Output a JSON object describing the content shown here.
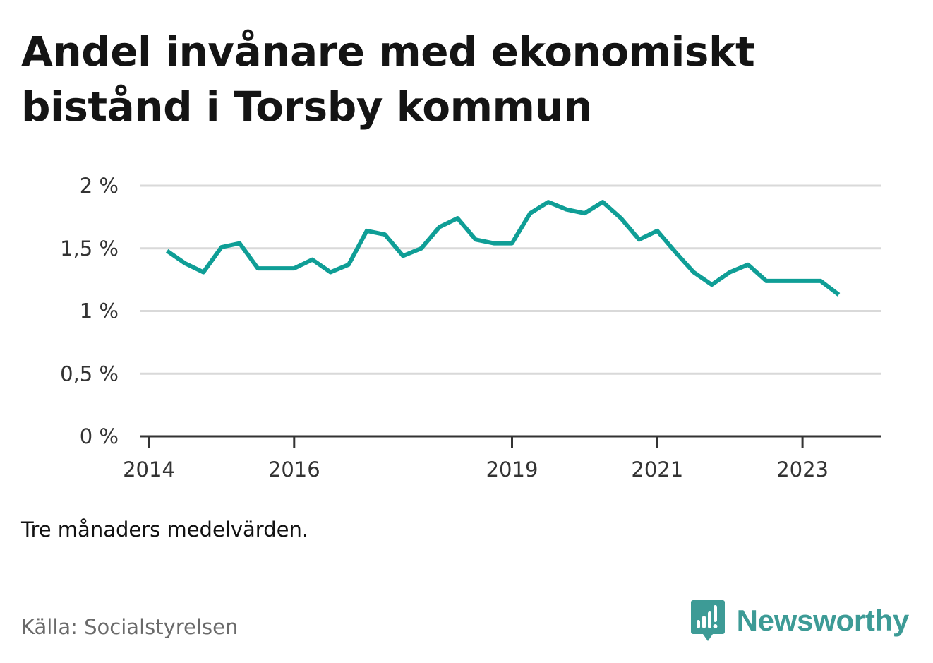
{
  "title": "Andel invånare med ekonomiskt bistånd i Torsby kommun",
  "note": "Tre månaders medelvärden.",
  "source": "Källa: Socialstyrelsen",
  "brand": {
    "name": "Newsworthy",
    "icon": "newsworthy-logo-icon",
    "color": "#3d9b96"
  },
  "colors": {
    "line": "#0f9e96",
    "grid": "#d9d9d9",
    "axis": "#333333"
  },
  "chart_data": {
    "type": "line",
    "title": "Andel invånare med ekonomiskt bistånd i Torsby kommun",
    "xlabel": "",
    "ylabel": "",
    "x_ticks": [
      "2014",
      "2016",
      "2019",
      "2021",
      "2023"
    ],
    "y_ticks": [
      "0 %",
      "0,5 %",
      "1 %",
      "1,5 %",
      "2 %"
    ],
    "ylim": [
      0,
      2
    ],
    "grid": true,
    "legend": "none",
    "x": [
      "2014-04",
      "2014-07",
      "2014-10",
      "2015-01",
      "2015-04",
      "2015-07",
      "2015-10",
      "2016-01",
      "2016-04",
      "2016-07",
      "2016-10",
      "2017-01",
      "2017-04",
      "2017-07",
      "2017-10",
      "2018-01",
      "2018-04",
      "2018-07",
      "2018-10",
      "2019-01",
      "2019-04",
      "2019-07",
      "2019-10",
      "2020-01",
      "2020-04",
      "2020-07",
      "2020-10",
      "2021-01",
      "2021-04",
      "2021-07",
      "2021-10",
      "2022-01",
      "2022-04",
      "2022-07",
      "2022-10",
      "2023-01",
      "2023-04",
      "2023-07"
    ],
    "values": [
      1.48,
      1.38,
      1.31,
      1.51,
      1.54,
      1.34,
      1.34,
      1.34,
      1.41,
      1.31,
      1.37,
      1.64,
      1.61,
      1.44,
      1.5,
      1.67,
      1.74,
      1.57,
      1.54,
      1.54,
      1.78,
      1.87,
      1.81,
      1.78,
      1.87,
      1.74,
      1.57,
      1.64,
      1.47,
      1.31,
      1.21,
      1.31,
      1.37,
      1.24,
      1.24,
      1.24,
      1.24,
      1.13
    ]
  }
}
